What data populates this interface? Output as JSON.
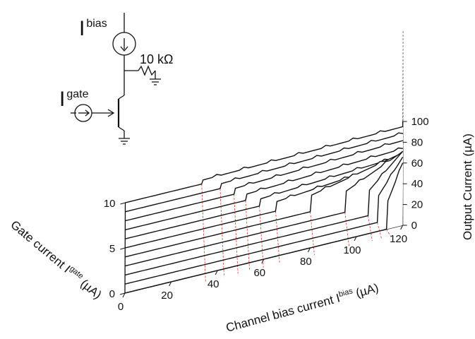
{
  "chart_data": {
    "type": "line",
    "projection": "3d-waterfall",
    "x_axis": {
      "label": "Channel bias current I",
      "label_sup": "bias",
      "label_unit": "(µA)",
      "range": [
        0,
        120
      ],
      "ticks": [
        "0",
        "20",
        "40",
        "60",
        "80",
        "100",
        "120"
      ]
    },
    "y_axis": {
      "label": "Gate current I",
      "label_sup": "gate",
      "label_unit": "(µA)",
      "range": [
        0,
        10
      ],
      "ticks": [
        "0",
        "5",
        "10"
      ]
    },
    "z_axis": {
      "label": "Output Current",
      "label_unit": "(µA)",
      "range": [
        0,
        100
      ],
      "ticks": [
        "0",
        "20",
        "40",
        "60",
        "80",
        "100"
      ]
    },
    "series": [
      {
        "gate": 0,
        "switch_bias": 113,
        "max_output": 60
      },
      {
        "gate": 1,
        "switch_bias": 109,
        "max_output": 57
      },
      {
        "gate": 2,
        "switch_bias": 105,
        "max_output": 54
      },
      {
        "gate": 3,
        "switch_bias": 95,
        "max_output": 45
      },
      {
        "gate": 4,
        "switch_bias": 80,
        "max_output": 35
      },
      {
        "gate": 5,
        "switch_bias": 65,
        "max_output": 20
      },
      {
        "gate": 6,
        "switch_bias": 58,
        "max_output": 15
      },
      {
        "gate": 7,
        "switch_bias": 52,
        "max_output": 13
      },
      {
        "gate": 8,
        "switch_bias": 47,
        "max_output": 12
      },
      {
        "gate": 9,
        "switch_bias": 41,
        "max_output": 10
      },
      {
        "gate": 10,
        "switch_bias": 33,
        "max_output": 8
      }
    ],
    "series_x_max": 120,
    "marker_color": "#e8322a",
    "line_color": "#111111"
  },
  "inset": {
    "bias_symbol": "I",
    "bias_sup": "bias",
    "gate_symbol": "I",
    "gate_sup": "gate",
    "resistor_label": "10 kΩ"
  }
}
